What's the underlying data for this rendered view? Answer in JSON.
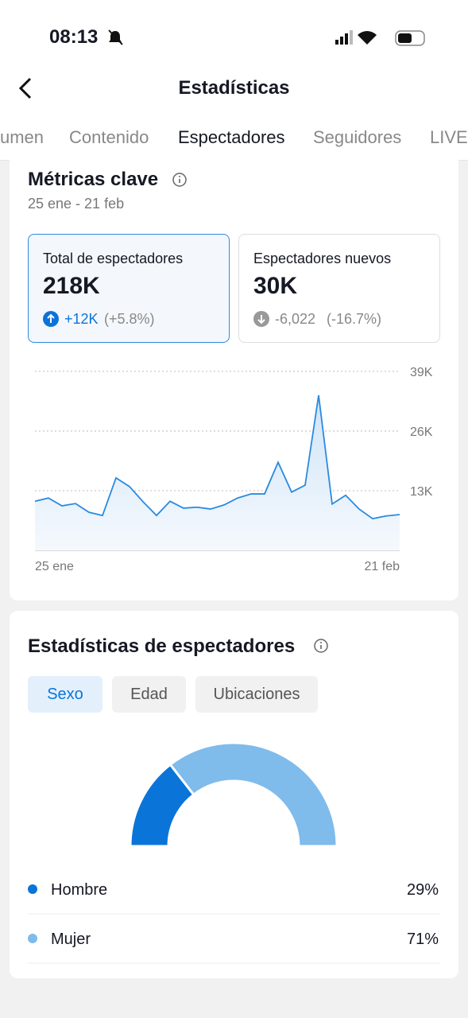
{
  "status": {
    "time": "08:13"
  },
  "header": {
    "title": "Estadísticas"
  },
  "tabs": [
    "umen",
    "Contenido",
    "Espectadores",
    "Seguidores",
    "LIVE"
  ],
  "metrics": {
    "title": "Métricas clave",
    "range": "25 ene - 21 feb",
    "cards": [
      {
        "label": "Total de espectadores",
        "value": "218K",
        "change": "+12K",
        "pct": "(+5.8%)"
      },
      {
        "label": "Espectadores nuevos",
        "value": "30K",
        "change": "-6,022",
        "pct": "(-16.7%)"
      }
    ]
  },
  "viewers": {
    "title": "Estadísticas de espectadores",
    "chips": [
      "Sexo",
      "Edad",
      "Ubicaciones"
    ]
  },
  "chart_data": [
    {
      "type": "line",
      "categories": [
        "25 ene",
        null,
        null,
        null,
        null,
        null,
        null,
        null,
        null,
        null,
        null,
        null,
        null,
        null,
        null,
        null,
        null,
        null,
        null,
        null,
        null,
        null,
        null,
        null,
        null,
        null,
        null,
        "21 feb"
      ],
      "values": [
        10700,
        11400,
        9700,
        10200,
        8300,
        7600,
        15800,
        13900,
        10600,
        7600,
        10700,
        9200,
        9400,
        9000,
        9900,
        11400,
        12300,
        12300,
        19200,
        12700,
        14200,
        33800,
        10100,
        12000,
        9000,
        6900,
        7500,
        7800
      ],
      "color": "#2a8ae0",
      "ylim": [
        0,
        39000
      ],
      "yticks": [
        {
          "value": 13000,
          "label": "13K"
        },
        {
          "value": 26000,
          "label": "26K"
        },
        {
          "value": 39000,
          "label": "39K"
        }
      ],
      "grid": true
    },
    {
      "type": "pie",
      "categories": [
        "Hombre",
        "Mujer"
      ],
      "values": [
        29,
        71
      ],
      "value_labels": [
        "29%",
        "71%"
      ],
      "colors": [
        "#0b74d9",
        "#7fbbeb"
      ]
    }
  ]
}
